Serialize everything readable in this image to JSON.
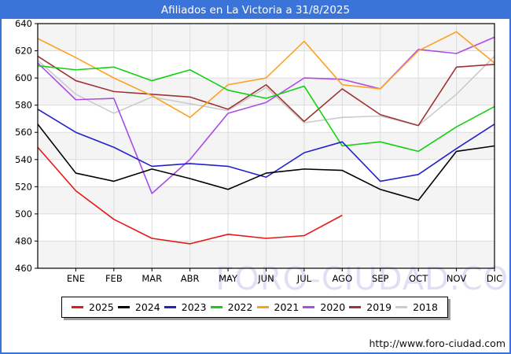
{
  "header": {
    "title": "Afiliados en La Victoria a 31/8/2025"
  },
  "watermark": "FORO-CIUDAD.COM",
  "footer": {
    "url_label": "http://www.foro-ciudad.com"
  },
  "colors": {
    "frame": "#3b74d8",
    "grid": "#dcdcdc",
    "band": "#f4f4f4",
    "axis": "#000000",
    "watermark": "#e0e0f5",
    "tick_text": "#000000"
  },
  "chart_data": {
    "type": "line",
    "title": "Afiliados en La Victoria a 31/8/2025",
    "x_labels": [
      "ENE",
      "FEB",
      "MAR",
      "ABR",
      "MAY",
      "JUN",
      "JUL",
      "AGO",
      "SEP",
      "OCT",
      "NOV",
      "DIC"
    ],
    "y_ticks": [
      460,
      480,
      500,
      520,
      540,
      560,
      580,
      600,
      620,
      640
    ],
    "ylim": [
      460,
      640
    ],
    "grid": true,
    "legend_position": "bottom",
    "note": "13 points per full series: start-of-year value at the y-axis plus one point per month ENE-DIC; 2025 ends at AGO (31/8/2025).",
    "series": [
      {
        "name": "2025",
        "color": "#e81717",
        "values": [
          549,
          517,
          496,
          482,
          478,
          485,
          482,
          484,
          499
        ]
      },
      {
        "name": "2024",
        "color": "#000000",
        "values": [
          566,
          530,
          524,
          533,
          526,
          518,
          530,
          533,
          532,
          518,
          510,
          546,
          550
        ]
      },
      {
        "name": "2023",
        "color": "#2222cc",
        "values": [
          577,
          560,
          549,
          535,
          537,
          535,
          527,
          545,
          553,
          524,
          529,
          548,
          566
        ]
      },
      {
        "name": "2022",
        "color": "#12d112",
        "values": [
          609,
          606,
          608,
          598,
          606,
          591,
          585,
          594,
          550,
          553,
          546,
          564,
          579
        ]
      },
      {
        "name": "2021",
        "color": "#ffa01e",
        "values": [
          629,
          615,
          600,
          587,
          571,
          595,
          600,
          627,
          595,
          592,
          620,
          634,
          611
        ]
      },
      {
        "name": "2020",
        "color": "#ab4ce6",
        "values": [
          611,
          584,
          585,
          515,
          540,
          574,
          582,
          600,
          599,
          592,
          621,
          618,
          630
        ]
      },
      {
        "name": "2019",
        "color": "#9e3434",
        "values": [
          616,
          598,
          590,
          588,
          586,
          577,
          595,
          568,
          592,
          573,
          565,
          608,
          610
        ]
      },
      {
        "name": "2018",
        "color": "#cbcbcb",
        "values": [
          613,
          588,
          574,
          586,
          581,
          576,
          593,
          567,
          571,
          572,
          565,
          588,
          616
        ]
      }
    ]
  }
}
